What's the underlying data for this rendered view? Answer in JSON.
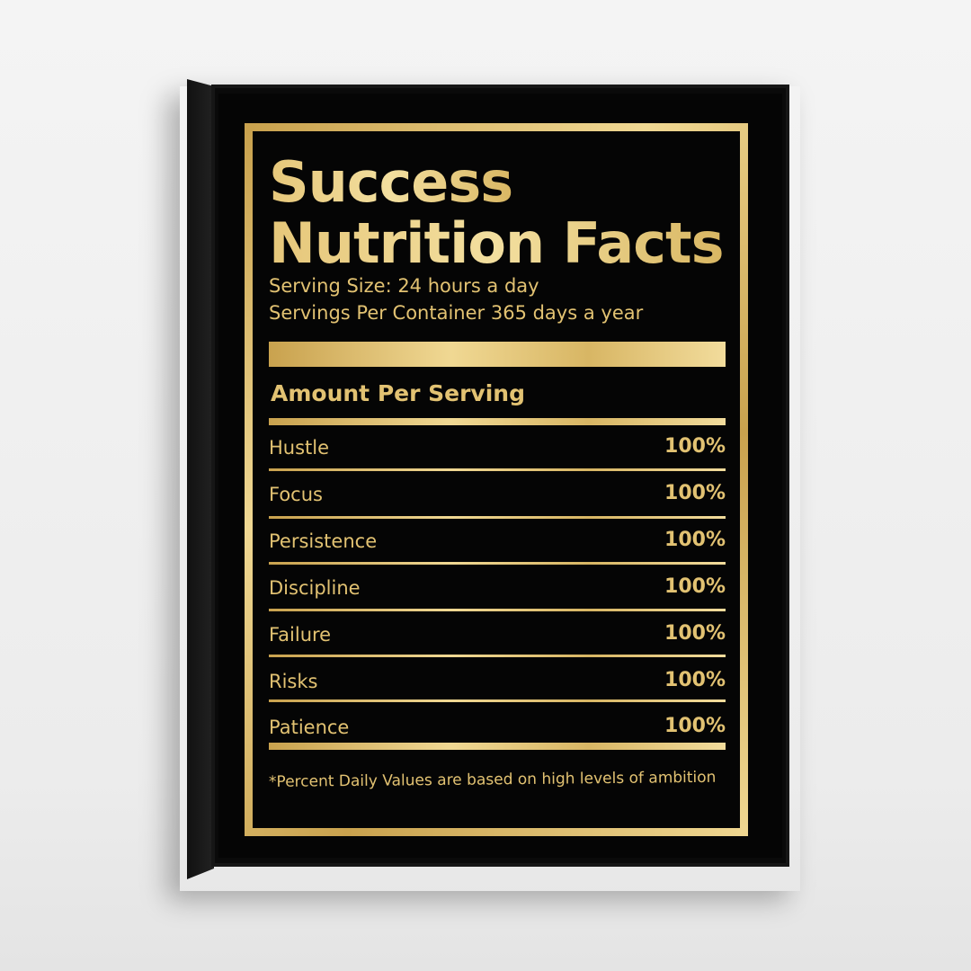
{
  "label": {
    "title_line1": "Success",
    "title_line2": "Nutrition Facts",
    "serving_size": "Serving Size: 24 hours a day",
    "servings_per_container": "Servings Per Container  365 days a year",
    "amount_heading": "Amount Per Serving",
    "rows": [
      {
        "name": "Hustle",
        "value": "100%"
      },
      {
        "name": "Focus",
        "value": "100%"
      },
      {
        "name": "Persistence",
        "value": "100%"
      },
      {
        "name": "Discipline",
        "value": "100%"
      },
      {
        "name": "Failure",
        "value": "100%"
      },
      {
        "name": "Risks",
        "value": "100%"
      },
      {
        "name": "Patience",
        "value": "100%"
      }
    ],
    "footnote": "*Percent Daily Values are based on high levels of ambition"
  },
  "colors": {
    "gold": "#e2c272",
    "background": "#050505",
    "frame": "#111111",
    "wall": "#f0f0f0"
  }
}
